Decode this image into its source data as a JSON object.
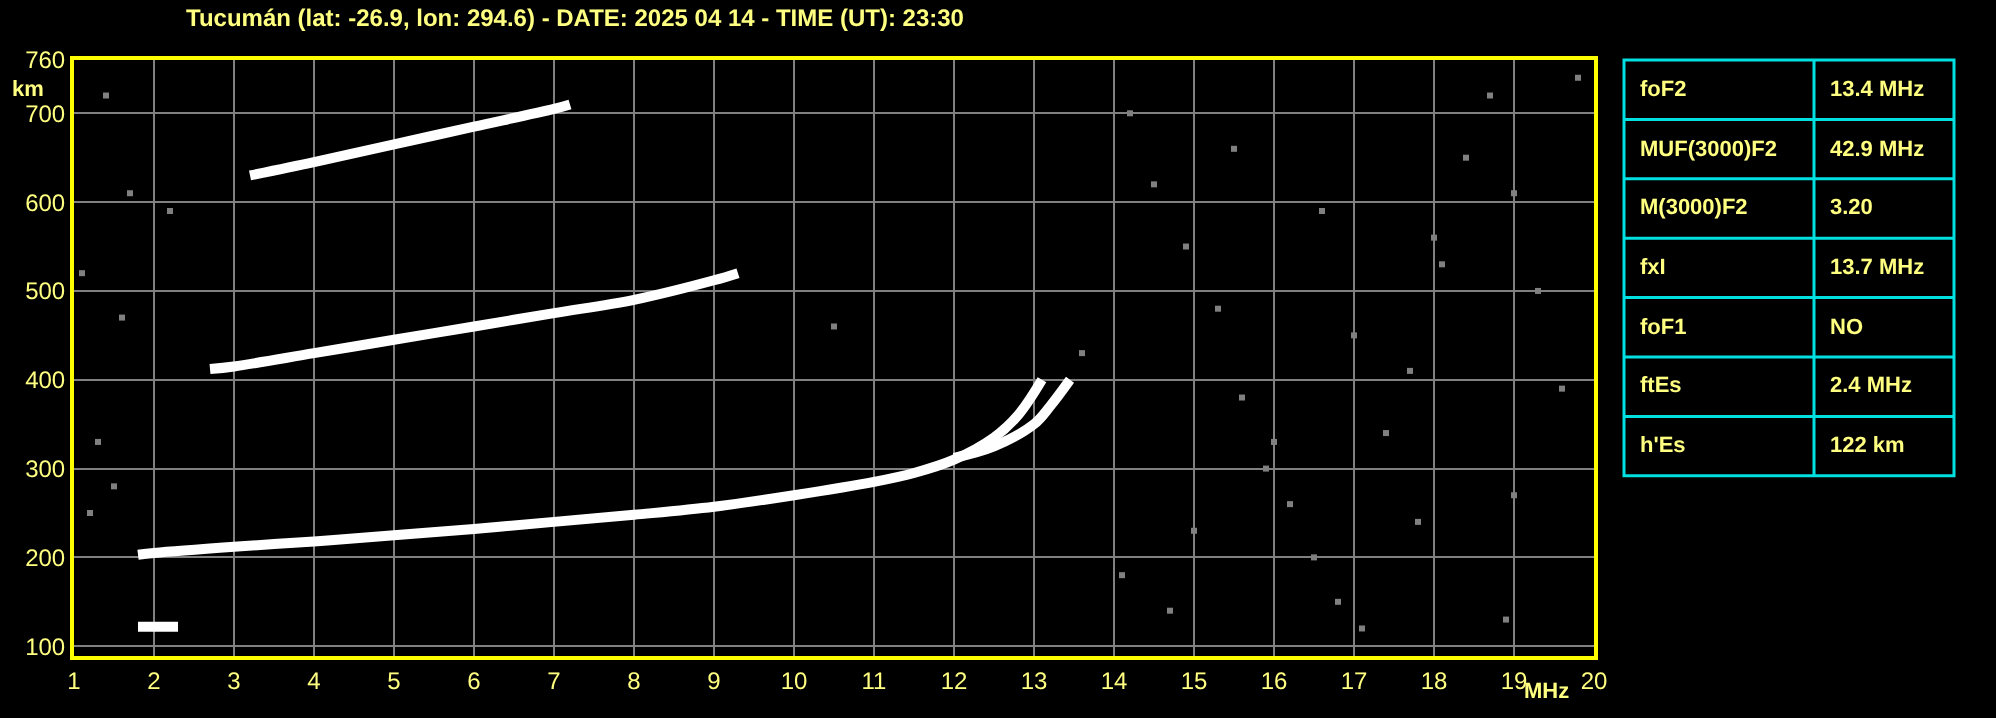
{
  "chart_data": [
    {
      "type": "line",
      "title": "Tucumán (lat: -26.9, lon: 294.6) - DATE: 2025 04 14 - TIME (UT): 23:30",
      "xlabel": "MHz",
      "ylabel": "km",
      "xlim": [
        1,
        20
      ],
      "xticks": [
        1,
        2,
        3,
        4,
        5,
        6,
        7,
        8,
        9,
        10,
        11,
        12,
        13,
        14,
        15,
        16,
        17,
        18,
        19,
        20
      ],
      "ylim": [
        89,
        760
      ],
      "yticks": [
        100,
        200,
        300,
        400,
        500,
        600,
        700,
        760
      ],
      "grid": true,
      "marker": "none",
      "line_style": "solid",
      "series": [
        {
          "color": "#ffffff",
          "x": [
            1.8,
            2.3
          ],
          "values": [
            122,
            122
          ]
        },
        {
          "color": "#ffffff",
          "x": [
            1.8,
            2,
            3,
            4,
            5,
            6,
            7,
            8,
            9,
            10,
            11,
            11.5,
            12,
            12.5,
            12.8,
            13.1
          ],
          "values": [
            203,
            205,
            212,
            218,
            225,
            232,
            240,
            248,
            257,
            270,
            285,
            295,
            310,
            335,
            360,
            400
          ]
        },
        {
          "color": "#ffffff",
          "x": [
            12,
            12.5,
            13,
            13.2,
            13.45
          ],
          "values": [
            312,
            325,
            350,
            370,
            400
          ]
        },
        {
          "color": "#ffffff",
          "x": [
            2.7,
            3,
            4,
            5,
            6,
            7,
            8,
            9,
            9.3
          ],
          "values": [
            412,
            415,
            430,
            445,
            460,
            475,
            490,
            512,
            520
          ]
        },
        {
          "color": "#ffffff",
          "x": [
            3.2,
            4,
            5,
            6,
            7,
            7.2
          ],
          "values": [
            630,
            645,
            665,
            685,
            705,
            710
          ]
        },
        {
          "type": "scatter",
          "marker": "square",
          "color": "#808080",
          "x": [
            1.1,
            1.3,
            1.5,
            1.2,
            1.6,
            1.4,
            1.7,
            2.2,
            13.6,
            14.2,
            14.5,
            14.9,
            15.3,
            15.6,
            15.9,
            16.2,
            16.5,
            16.8,
            17.1,
            17.4,
            17.7,
            18.1,
            18.4,
            18.7,
            19.0,
            19.3,
            19.6,
            14.1,
            15.0,
            16.0,
            17.0,
            18.0,
            19.0,
            14.7,
            15.5,
            16.6,
            17.8,
            18.9,
            19.8,
            10.5
          ],
          "values": [
            520,
            330,
            280,
            250,
            470,
            720,
            610,
            590,
            430,
            700,
            620,
            550,
            480,
            380,
            300,
            260,
            200,
            150,
            120,
            340,
            410,
            530,
            650,
            720,
            610,
            500,
            390,
            180,
            230,
            330,
            450,
            560,
            270,
            140,
            660,
            590,
            240,
            130,
            740,
            460
          ]
        }
      ]
    },
    {
      "type": "other",
      "annotations": [
        "foF2",
        "13.4 MHz",
        "MUF(3000)F2",
        "42.9 MHz",
        "M(3000)F2",
        "3.20",
        "fxI",
        "13.7 MHz",
        "foF1",
        "NO",
        "ftEs",
        "2.4 MHz",
        "h'Es",
        "122 km"
      ]
    }
  ]
}
